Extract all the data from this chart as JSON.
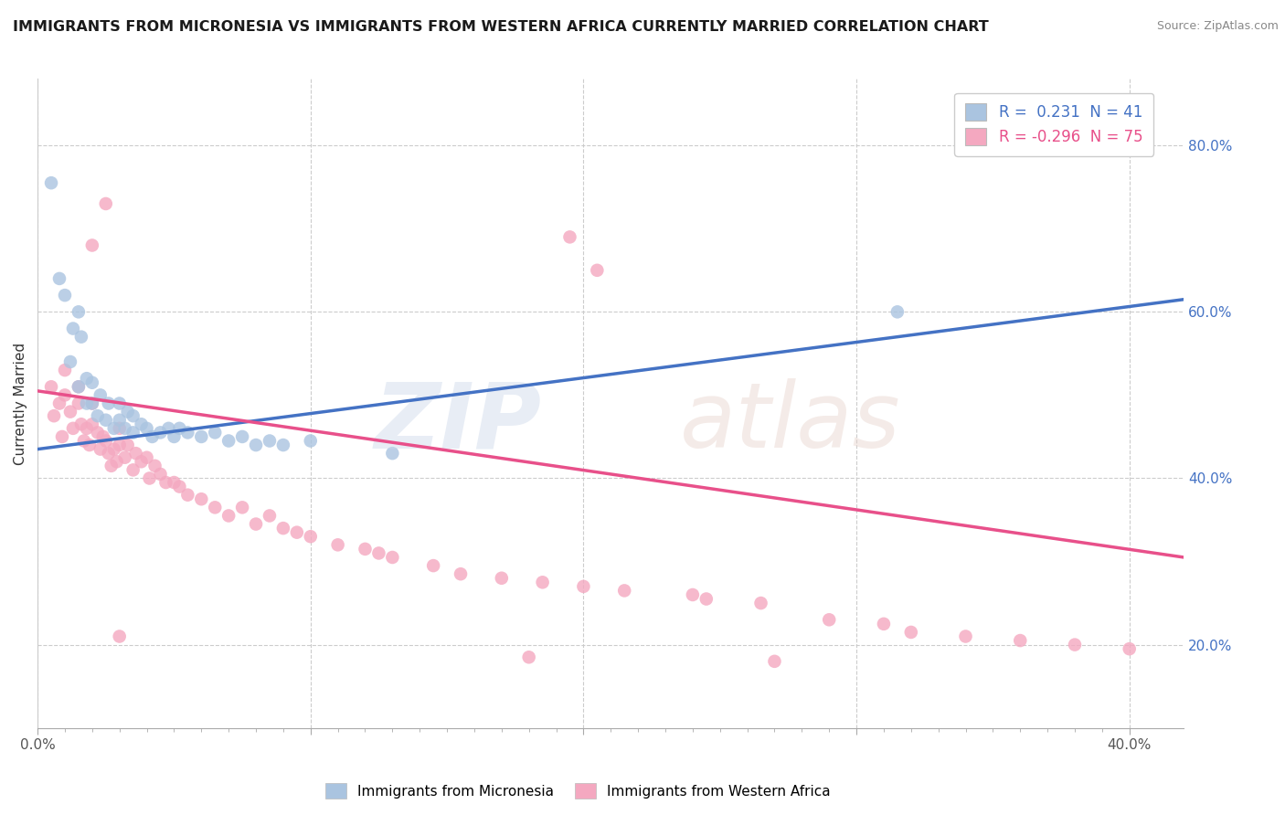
{
  "title": "IMMIGRANTS FROM MICRONESIA VS IMMIGRANTS FROM WESTERN AFRICA CURRENTLY MARRIED CORRELATION CHART",
  "source": "Source: ZipAtlas.com",
  "ylabel": "Currently Married",
  "xlim": [
    0.0,
    0.42
  ],
  "ylim": [
    0.1,
    0.88
  ],
  "xticks_major": [
    0.0,
    0.1,
    0.2,
    0.3,
    0.4
  ],
  "xticks_minor": [
    0.01,
    0.02,
    0.03,
    0.04,
    0.05,
    0.06,
    0.07,
    0.08,
    0.09,
    0.11,
    0.12,
    0.13,
    0.14,
    0.15,
    0.16,
    0.17,
    0.18,
    0.19,
    0.21,
    0.22,
    0.23,
    0.24,
    0.25,
    0.26,
    0.27,
    0.28,
    0.29,
    0.31,
    0.32,
    0.33,
    0.34,
    0.35,
    0.36,
    0.37,
    0.38,
    0.39
  ],
  "yticks_right": [
    0.2,
    0.4,
    0.6,
    0.8
  ],
  "blue_R": 0.231,
  "blue_N": 41,
  "pink_R": -0.296,
  "pink_N": 75,
  "blue_color": "#aac4e0",
  "pink_color": "#f4a8c0",
  "blue_line_color": "#4472c4",
  "pink_line_color": "#e8508a",
  "blue_trend_x": [
    0.0,
    0.42
  ],
  "blue_trend_y": [
    0.435,
    0.615
  ],
  "pink_trend_x": [
    0.0,
    0.42
  ],
  "pink_trend_y": [
    0.505,
    0.305
  ],
  "blue_scatter_x": [
    0.005,
    0.008,
    0.01,
    0.012,
    0.013,
    0.015,
    0.016,
    0.018,
    0.018,
    0.02,
    0.02,
    0.022,
    0.023,
    0.025,
    0.026,
    0.028,
    0.03,
    0.03,
    0.032,
    0.033,
    0.035,
    0.035,
    0.038,
    0.04,
    0.042,
    0.045,
    0.048,
    0.05,
    0.052,
    0.055,
    0.06,
    0.065,
    0.07,
    0.075,
    0.08,
    0.085,
    0.09,
    0.1,
    0.13,
    0.315,
    0.015
  ],
  "blue_scatter_y": [
    0.755,
    0.64,
    0.62,
    0.54,
    0.58,
    0.51,
    0.57,
    0.49,
    0.52,
    0.49,
    0.515,
    0.475,
    0.5,
    0.47,
    0.49,
    0.46,
    0.47,
    0.49,
    0.46,
    0.48,
    0.455,
    0.475,
    0.465,
    0.46,
    0.45,
    0.455,
    0.46,
    0.45,
    0.46,
    0.455,
    0.45,
    0.455,
    0.445,
    0.45,
    0.44,
    0.445,
    0.44,
    0.445,
    0.43,
    0.6,
    0.6
  ],
  "pink_scatter_x": [
    0.005,
    0.006,
    0.008,
    0.009,
    0.01,
    0.01,
    0.012,
    0.013,
    0.015,
    0.015,
    0.016,
    0.017,
    0.018,
    0.019,
    0.02,
    0.02,
    0.022,
    0.023,
    0.024,
    0.025,
    0.026,
    0.027,
    0.028,
    0.029,
    0.03,
    0.03,
    0.032,
    0.033,
    0.035,
    0.036,
    0.038,
    0.04,
    0.041,
    0.043,
    0.045,
    0.047,
    0.05,
    0.052,
    0.055,
    0.06,
    0.065,
    0.07,
    0.075,
    0.08,
    0.085,
    0.09,
    0.095,
    0.1,
    0.11,
    0.12,
    0.125,
    0.13,
    0.145,
    0.155,
    0.17,
    0.185,
    0.2,
    0.215,
    0.24,
    0.245,
    0.265,
    0.29,
    0.31,
    0.32,
    0.34,
    0.36,
    0.38,
    0.4,
    0.195,
    0.205,
    0.02,
    0.025,
    0.03,
    0.18,
    0.27
  ],
  "pink_scatter_y": [
    0.51,
    0.475,
    0.49,
    0.45,
    0.53,
    0.5,
    0.48,
    0.46,
    0.49,
    0.51,
    0.465,
    0.445,
    0.46,
    0.44,
    0.465,
    0.49,
    0.455,
    0.435,
    0.45,
    0.445,
    0.43,
    0.415,
    0.435,
    0.42,
    0.44,
    0.46,
    0.425,
    0.44,
    0.41,
    0.43,
    0.42,
    0.425,
    0.4,
    0.415,
    0.405,
    0.395,
    0.395,
    0.39,
    0.38,
    0.375,
    0.365,
    0.355,
    0.365,
    0.345,
    0.355,
    0.34,
    0.335,
    0.33,
    0.32,
    0.315,
    0.31,
    0.305,
    0.295,
    0.285,
    0.28,
    0.275,
    0.27,
    0.265,
    0.26,
    0.255,
    0.25,
    0.23,
    0.225,
    0.215,
    0.21,
    0.205,
    0.2,
    0.195,
    0.69,
    0.65,
    0.68,
    0.73,
    0.21,
    0.185,
    0.18
  ]
}
